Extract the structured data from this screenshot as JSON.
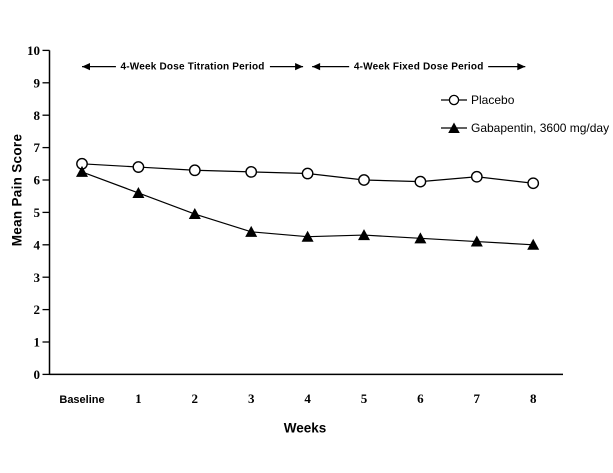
{
  "figure": {
    "background": "#ffffff",
    "ink_color": "#000000"
  },
  "chart_data": {
    "type": "line",
    "title": "",
    "xlabel": "Weeks",
    "ylabel": "Mean Pain Score",
    "categories": [
      "Baseline",
      "1",
      "2",
      "3",
      "4",
      "5",
      "6",
      "7",
      "8"
    ],
    "ylim": [
      0,
      10
    ],
    "yticks": [
      0,
      1,
      2,
      3,
      4,
      5,
      6,
      7,
      8,
      9,
      10
    ],
    "grid": false,
    "legend_position": "upper-right",
    "series": [
      {
        "name": "Placebo",
        "marker": "open-circle",
        "color": "#000000",
        "values": [
          6.5,
          6.4,
          6.3,
          6.25,
          6.2,
          6.0,
          5.95,
          6.1,
          5.9
        ]
      },
      {
        "name": "Gabapentin, 3600 mg/day",
        "marker": "filled-triangle",
        "color": "#000000",
        "values": [
          6.25,
          5.6,
          4.95,
          4.4,
          4.25,
          4.3,
          4.2,
          4.1,
          4.0
        ]
      }
    ],
    "annotations": [
      {
        "label": "4-Week Dose Titration Period",
        "style": "double-headed-arrow",
        "x_from_week": 0.0,
        "x_to_week": 3.92,
        "y_value": 9.5
      },
      {
        "label": "4-Week Fixed Dose Period",
        "style": "double-headed-arrow",
        "x_from_week": 4.08,
        "x_to_week": 7.86,
        "y_value": 9.5
      }
    ]
  }
}
